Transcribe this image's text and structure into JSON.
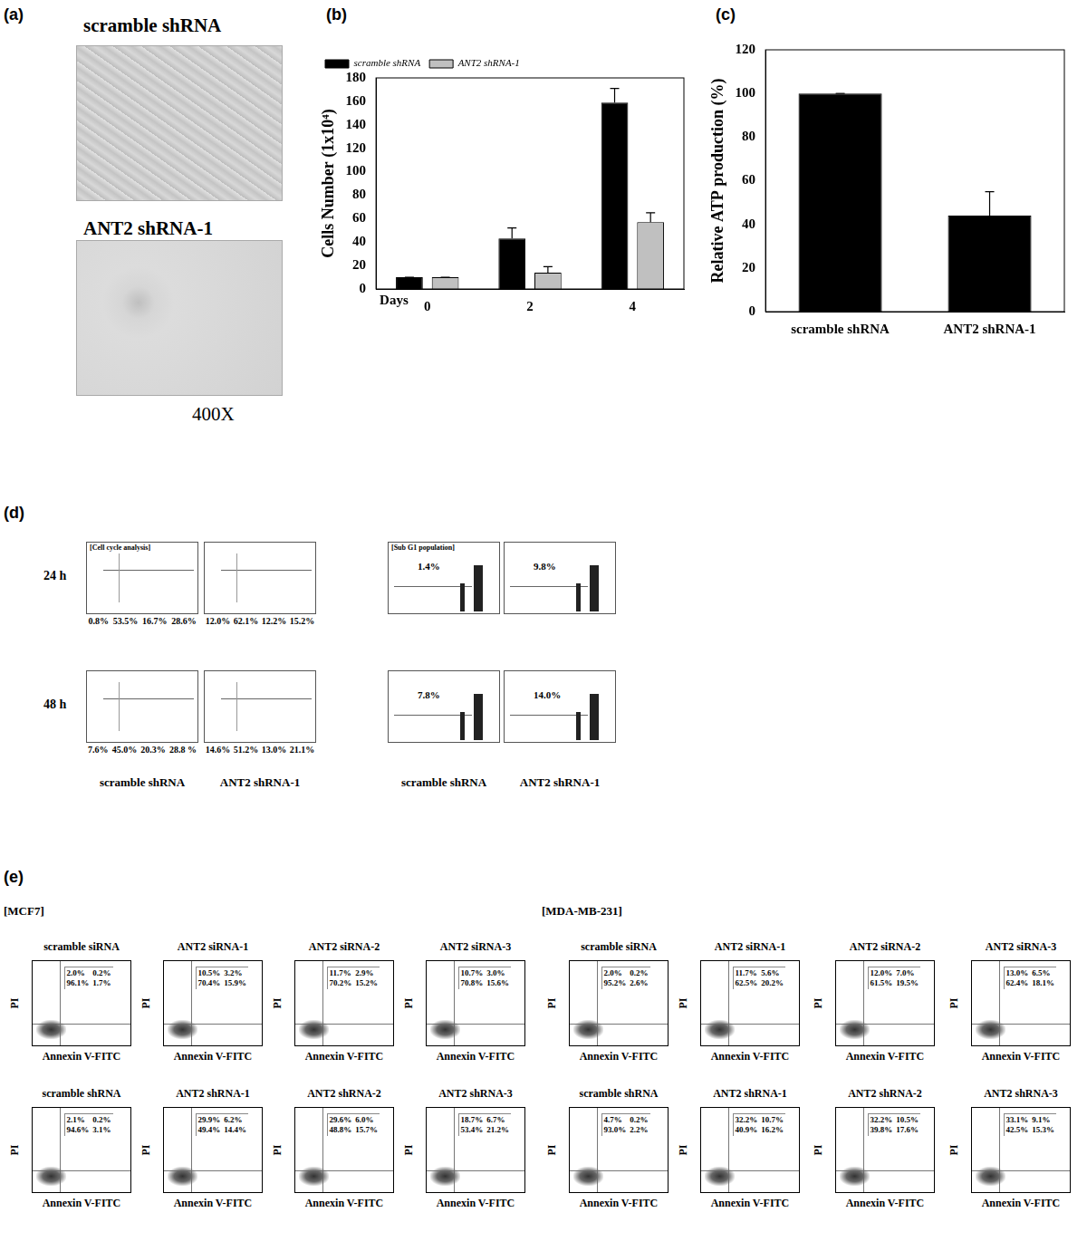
{
  "panel_a": {
    "label": "(a)",
    "images": [
      "scramble shRNA",
      "ANT2 shRNA-1"
    ],
    "magnification": "400X"
  },
  "chart_data": [
    {
      "type": "bar",
      "title": "(b)",
      "x_label": "Days",
      "y_label": "Cells Number (1x10⁴)",
      "categories": [
        "0",
        "2",
        "4"
      ],
      "series": [
        {
          "name": "scramble shRNA",
          "color": "#000000",
          "values": [
            10,
            43,
            159
          ],
          "errors": [
            0,
            9,
            12
          ]
        },
        {
          "name": "ANT2 shRNA-1",
          "color": "#c0c0c0",
          "values": [
            10,
            14,
            57
          ],
          "errors": [
            0,
            5,
            8
          ]
        }
      ],
      "ylim": [
        0,
        180
      ],
      "yticks": [
        0,
        20,
        40,
        60,
        80,
        100,
        120,
        140,
        160,
        180
      ],
      "legend": "top-left",
      "grid": false
    },
    {
      "type": "bar",
      "title": "(c)",
      "y_label": "Relative ATP production (%)",
      "categories": [
        "scramble shRNA",
        "ANT2 shRNA-1"
      ],
      "values": [
        100,
        44
      ],
      "errors": [
        0,
        11
      ],
      "color": "#000000",
      "ylim": [
        0,
        120
      ],
      "yticks": [
        0,
        20,
        40,
        60,
        80,
        100,
        120
      ],
      "grid": false
    }
  ],
  "panel_d": {
    "label": "(d)",
    "cell_cycle_title": "[Cell cycle analysis]",
    "sub_g1_title": "[Sub G1 population]",
    "columns": [
      "scramble shRNA",
      "ANT2 shRNA-1"
    ],
    "rows": [
      {
        "time": "24 h",
        "cell_cycle": [
          [
            "0.8%",
            "53.5%",
            "16.7%",
            "28.6%"
          ],
          [
            "12.0%",
            "62.1%",
            "12.2%",
            "15.2%"
          ]
        ],
        "sub_g1": [
          "1.4%",
          "9.8%"
        ]
      },
      {
        "time": "48 h",
        "cell_cycle": [
          [
            "7.6%",
            "45.0%",
            "20.3%",
            "28.8 %"
          ],
          [
            "14.6%",
            "51.2%",
            "13.0%",
            "21.1%"
          ]
        ],
        "sub_g1": [
          "7.8%",
          "14.0%"
        ]
      }
    ]
  },
  "panel_e": {
    "label": "(e)",
    "x_label": "Annexin V-FITC",
    "y_label": "PI",
    "groups": [
      {
        "name": "[MCF7]",
        "rows": [
          [
            {
              "title": "scramble siRNA",
              "quadrants": [
                "2.0%",
                "0.2%",
                "96.1%",
                "1.7%"
              ]
            },
            {
              "title": "ANT2 siRNA-1",
              "quadrants": [
                "10.5%",
                "3.2%",
                "70.4%",
                "15.9%"
              ]
            },
            {
              "title": "ANT2 siRNA-2",
              "quadrants": [
                "11.7%",
                "2.9%",
                "70.2%",
                "15.2%"
              ]
            },
            {
              "title": "ANT2 siRNA-3",
              "quadrants": [
                "10.7%",
                "3.0%",
                "70.8%",
                "15.6%"
              ]
            }
          ],
          [
            {
              "title": "scramble shRNA",
              "quadrants": [
                "2.1%",
                "0.2%",
                "94.6%",
                "3.1%"
              ]
            },
            {
              "title": "ANT2 shRNA-1",
              "quadrants": [
                "29.9%",
                "6.2%",
                "49.4%",
                "14.4%"
              ]
            },
            {
              "title": "ANT2 shRNA-2",
              "quadrants": [
                "29.6%",
                "6.0%",
                "48.8%",
                "15.7%"
              ]
            },
            {
              "title": "ANT2 shRNA-3",
              "quadrants": [
                "18.7%",
                "6.7%",
                "53.4%",
                "21.2%"
              ]
            }
          ]
        ]
      },
      {
        "name": "[MDA-MB-231]",
        "rows": [
          [
            {
              "title": "scramble siRNA",
              "quadrants": [
                "2.0%",
                "0.2%",
                "95.2%",
                "2.6%"
              ]
            },
            {
              "title": "ANT2 siRNA-1",
              "quadrants": [
                "11.7%",
                "5.6%",
                "62.5%",
                "20.2%"
              ]
            },
            {
              "title": "ANT2 siRNA-2",
              "quadrants": [
                "12.0%",
                "7.0%",
                "61.5%",
                "19.5%"
              ]
            },
            {
              "title": "ANT2 siRNA-3",
              "quadrants": [
                "13.0%",
                "6.5%",
                "62.4%",
                "18.1%"
              ]
            }
          ],
          [
            {
              "title": "scramble shRNA",
              "quadrants": [
                "4.7%",
                "0.2%",
                "93.0%",
                "2.2%"
              ]
            },
            {
              "title": "ANT2 shRNA-1",
              "quadrants": [
                "32.2%",
                "10.7%",
                "40.9%",
                "16.2%"
              ]
            },
            {
              "title": "ANT2 shRNA-2",
              "quadrants": [
                "32.2%",
                "10.5%",
                "39.8%",
                "17.6%"
              ]
            },
            {
              "title": "ANT2 shRNA-3",
              "quadrants": [
                "33.1%",
                "9.1%",
                "42.5%",
                "15.3%"
              ]
            }
          ]
        ]
      }
    ]
  }
}
